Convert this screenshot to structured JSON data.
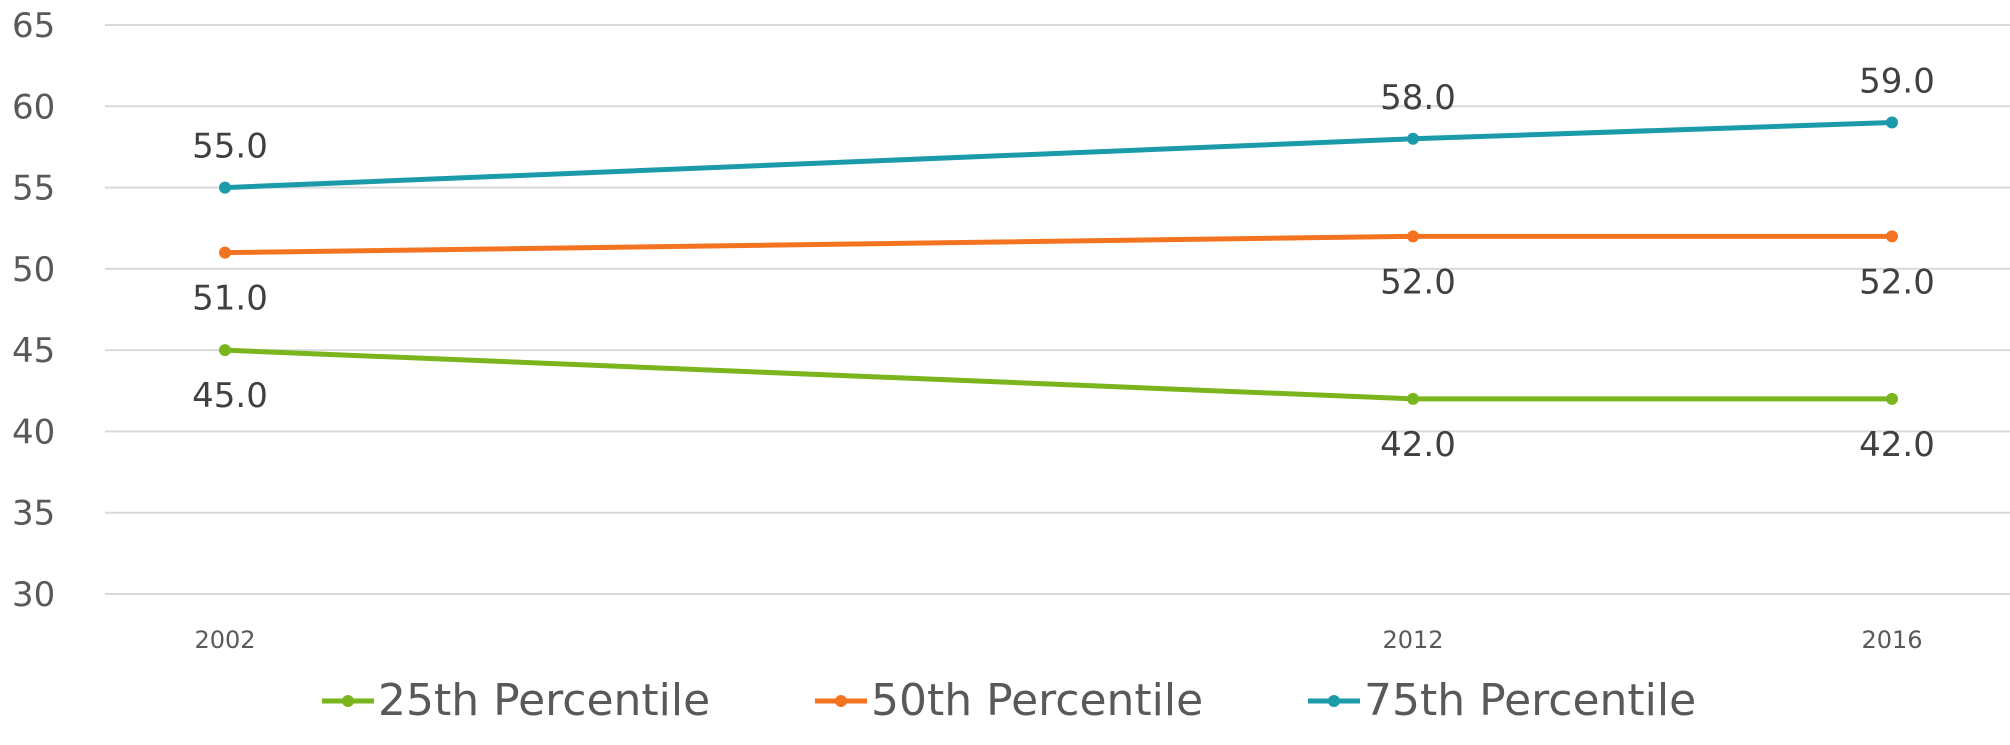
{
  "chart_data": {
    "type": "line",
    "title": "",
    "xlabel": "",
    "ylabel": "",
    "categories": [
      "2002",
      "2012",
      "2016"
    ],
    "ylim": [
      30,
      65
    ],
    "yticks": [
      30,
      35,
      40,
      45,
      50,
      55,
      60,
      65
    ],
    "grid": true,
    "legend_position": "bottom",
    "series": [
      {
        "name": "25th Percentile",
        "color": "#7ab51d",
        "values": [
          45.0,
          42.0,
          42.0
        ],
        "labels": [
          "45.0",
          "42.0",
          "42.0"
        ],
        "label_placement": [
          "below",
          "below",
          "below"
        ]
      },
      {
        "name": "50th Percentile",
        "color": "#f47321",
        "values": [
          51.0,
          52.0,
          52.0
        ],
        "labels": [
          "51.0",
          "52.0",
          "52.0"
        ],
        "label_placement": [
          "below",
          "below",
          "below"
        ]
      },
      {
        "name": "75th Percentile",
        "color": "#1b9aaa",
        "values": [
          55.0,
          58.0,
          59.0
        ],
        "labels": [
          "55.0",
          "58.0",
          "59.0"
        ],
        "label_placement": [
          "above",
          "above",
          "above"
        ]
      }
    ]
  }
}
